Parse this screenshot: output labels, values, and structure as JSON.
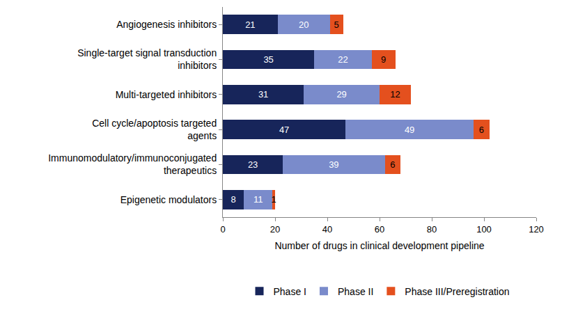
{
  "chart_data": {
    "type": "bar",
    "orientation": "horizontal",
    "stacked": true,
    "data_labels": true,
    "grid": false,
    "legend": "bottom",
    "x_label": "Number of drugs in clinical development pipeline",
    "categories": [
      "Angiogenesis inhibitors",
      "Single-target signal transduction inhibitors",
      "Multi-targeted inhibitors",
      "Cell cycle/apoptosis targeted agents",
      "Immunomodulatory/immunoconjugated therapeutics",
      "Epigenetic modulators"
    ],
    "series": [
      {
        "name": "Phase I",
        "color": "#17255a",
        "values": [
          21,
          35,
          31,
          47,
          23,
          8
        ]
      },
      {
        "name": "Phase II",
        "color": "#7a8bcb",
        "values": [
          20,
          22,
          29,
          49,
          39,
          11
        ]
      },
      {
        "name": "Phase III/Preregistration",
        "color": "#e4501e",
        "values": [
          5,
          9,
          12,
          6,
          6,
          1
        ]
      }
    ],
    "xlim": [
      0,
      120
    ],
    "xticks": [
      0,
      20,
      40,
      60,
      80,
      100,
      120
    ]
  }
}
